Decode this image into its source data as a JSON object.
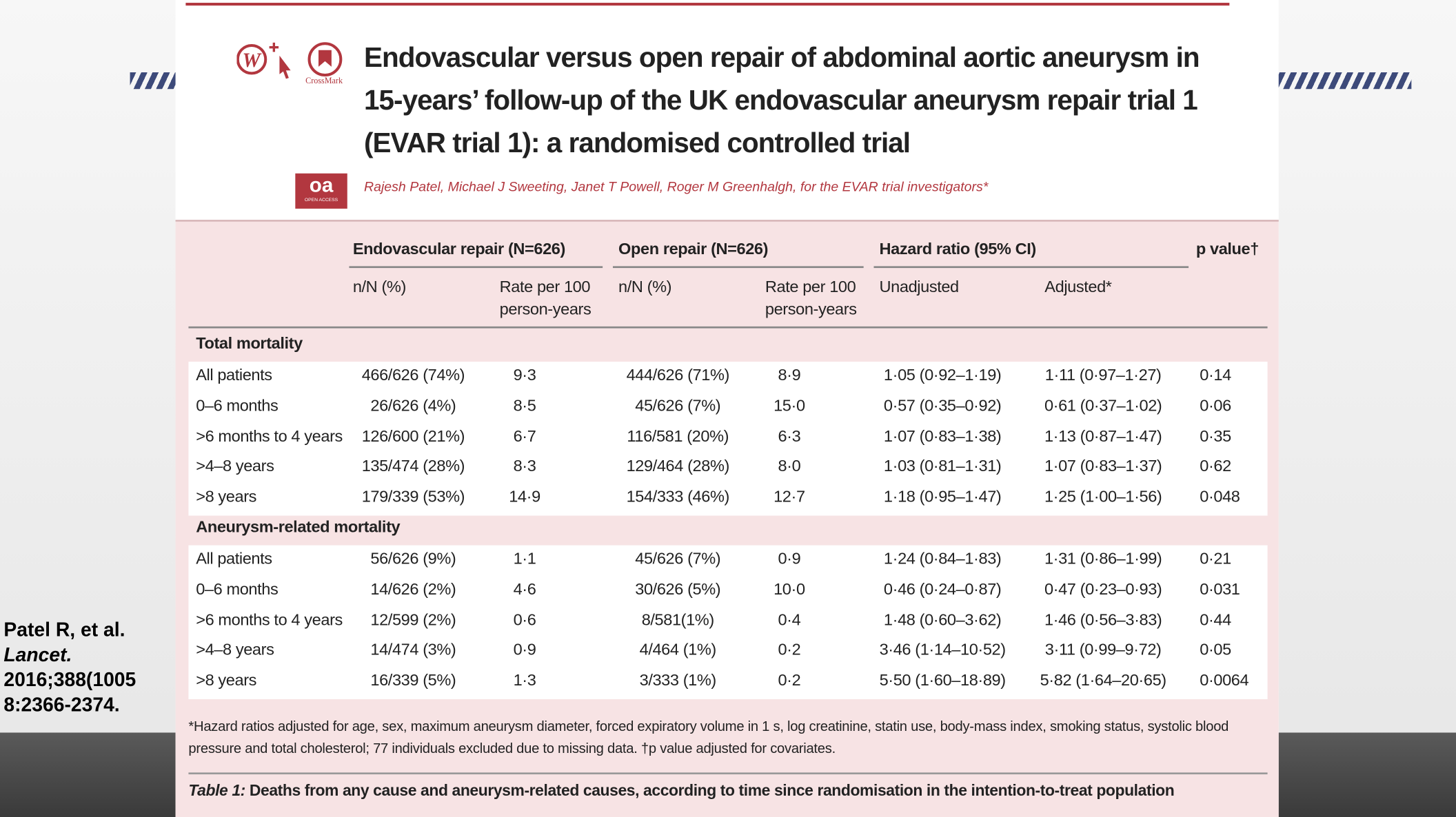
{
  "slide": {
    "citation": [
      "Patel R, et al.",
      "Lancet.",
      "2016;388(1005",
      "8:2366-2374."
    ]
  },
  "article": {
    "crossmark": "CrossMark",
    "oa": "oa",
    "open_access": "OPEN ACCESS",
    "title": "Endovascular versus open repair of abdominal aortic aneurysm in 15-years’ follow-up of the UK endovascular aneurysm repair trial 1 (EVAR trial 1): a randomised controlled trial",
    "authors": "Rajesh Patel, Michael J Sweeting, Janet T Powell, Roger M Greenhalgh, for the EVAR trial investigators*"
  },
  "table": {
    "groups": [
      "Endovascular repair (N=626)",
      "Open repair (N=626)",
      "Hazard ratio (95% CI)",
      "p value†"
    ],
    "subheaders": [
      "n/N (%)",
      "Rate per 100 person-years",
      "n/N (%)",
      "Rate per 100 person-years",
      "Unadjusted",
      "Adjusted*"
    ],
    "sections": [
      {
        "title": "Total mortality",
        "rows": [
          [
            "All patients",
            "466/626 (74%)",
            "9·3",
            "444/626 (71%)",
            "8·9",
            "1·05 (0·92–1·19)",
            "1·11 (0·97–1·27)",
            "0·14"
          ],
          [
            "0–6 months",
            "26/626 (4%)",
            "8·5",
            "45/626 (7%)",
            "15·0",
            "0·57 (0·35–0·92)",
            "0·61 (0·37–1·02)",
            "0·06"
          ],
          [
            ">6 months to 4 years",
            "126/600 (21%)",
            "6·7",
            "116/581 (20%)",
            "6·3",
            "1·07 (0·83–1·38)",
            "1·13 (0·87–1·47)",
            "0·35"
          ],
          [
            ">4–8 years",
            "135/474 (28%)",
            "8·3",
            "129/464 (28%)",
            "8·0",
            "1·03 (0·81–1·31)",
            "1·07 (0·83–1·37)",
            "0·62"
          ],
          [
            ">8 years",
            "179/339 (53%)",
            "14·9",
            "154/333 (46%)",
            "12·7",
            "1·18 (0·95–1·47)",
            "1·25 (1·00–1·56)",
            "0·048"
          ]
        ]
      },
      {
        "title": "Aneurysm-related mortality",
        "rows": [
          [
            "All patients",
            "56/626 (9%)",
            "1·1",
            "45/626 (7%)",
            "0·9",
            "1·24 (0·84–1·83)",
            "1·31 (0·86–1·99)",
            "0·21"
          ],
          [
            "0–6 months",
            "14/626 (2%)",
            "4·6",
            "30/626 (5%)",
            "10·0",
            "0·46 (0·24–0·87)",
            "0·47 (0·23–0·93)",
            "0·031"
          ],
          [
            ">6 months to 4 years",
            "12/599 (2%)",
            "0·6",
            "8/581(1%)",
            "0·4",
            "1·48 (0·60–3·62)",
            "1·46 (0·56–3·83)",
            "0·44"
          ],
          [
            ">4–8 years",
            "14/474 (3%)",
            "0·9",
            "4/464 (1%)",
            "0·2",
            "3·46 (1·14–10·52)",
            "3·11 (0·99–9·72)",
            "0·05"
          ],
          [
            ">8 years",
            "16/339 (5%)",
            "1·3",
            "3/333 (1%)",
            "0·2",
            "5·50 (1·60–18·89)",
            "5·82 (1·64–20·65)",
            "0·0064"
          ]
        ]
      }
    ],
    "footnote": "*Hazard ratios adjusted for age, sex, maximum aneurysm diameter, forced expiratory volume in 1 s, log creatinine, statin use, body-mass index, smoking status, systolic blood pressure and total cholesterol; 77 individuals excluded due to missing data. †p value adjusted for covariates.",
    "caption_label": "Table 1:",
    "caption": "Deaths from any cause and aneurysm-related causes, according to time since randomisation in the intention-to-treat population"
  }
}
